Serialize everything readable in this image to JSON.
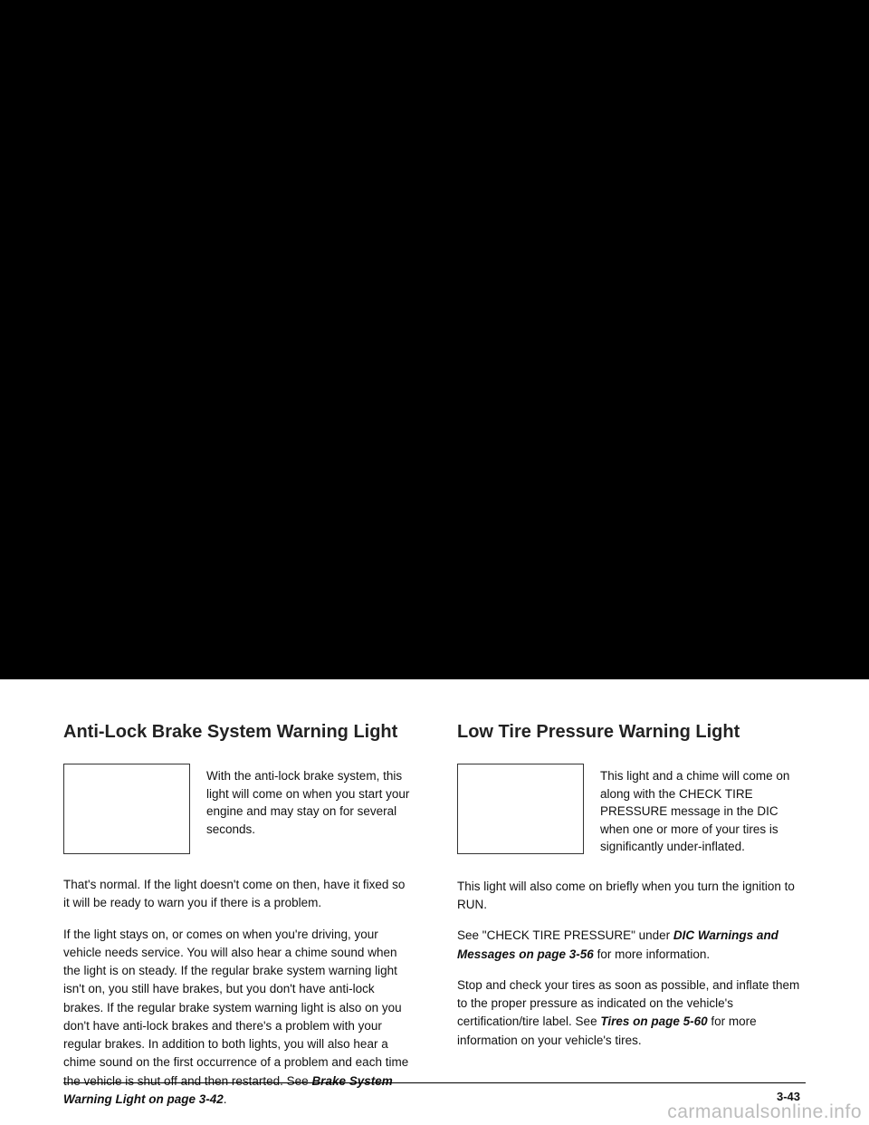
{
  "left": {
    "heading": "Anti-Lock Brake System Warning Light",
    "caption": "With the anti-lock brake system, this light will come on when you start your engine and may stay on for several seconds.",
    "p1": "That's normal. If the light doesn't come on then, have it fixed so it will be ready to warn you if there is a problem.",
    "p2a": "If the light stays on, or comes on when you're driving, your vehicle needs service. You will also hear a chime sound when the light is on steady. If the regular brake system warning light isn't on, you still have brakes, but you don't have anti-lock brakes. If the regular brake system warning light is also on you don't have anti-lock brakes and there's a problem with your regular brakes. In addition to both lights, you will also hear a chime sound on the first occurrence of a problem and each time the vehicle is shut off and then restarted. See ",
    "p2xref": "Brake System Warning Light on page 3-42",
    "p2b": "."
  },
  "right": {
    "heading": "Low Tire Pressure Warning Light",
    "caption": "This light and a chime will come on along with the CHECK TIRE PRESSURE message in the DIC when one or more of your tires is significantly under-inflated.",
    "p1": "This light will also come on briefly when you turn the ignition to RUN.",
    "p2a": "See \"CHECK TIRE PRESSURE\" under ",
    "p2xref": "DIC Warnings and Messages on page 3-56",
    "p2b": " for more information.",
    "p3a": "Stop and check your tires as soon as possible, and inflate them to the proper pressure as indicated on the vehicle's certification/tire label. See ",
    "p3xref": "Tires on page 5-60",
    "p3b": " for more information on your vehicle's tires."
  },
  "pageNumber": "3-43",
  "watermark": "carmanualsonline.info"
}
